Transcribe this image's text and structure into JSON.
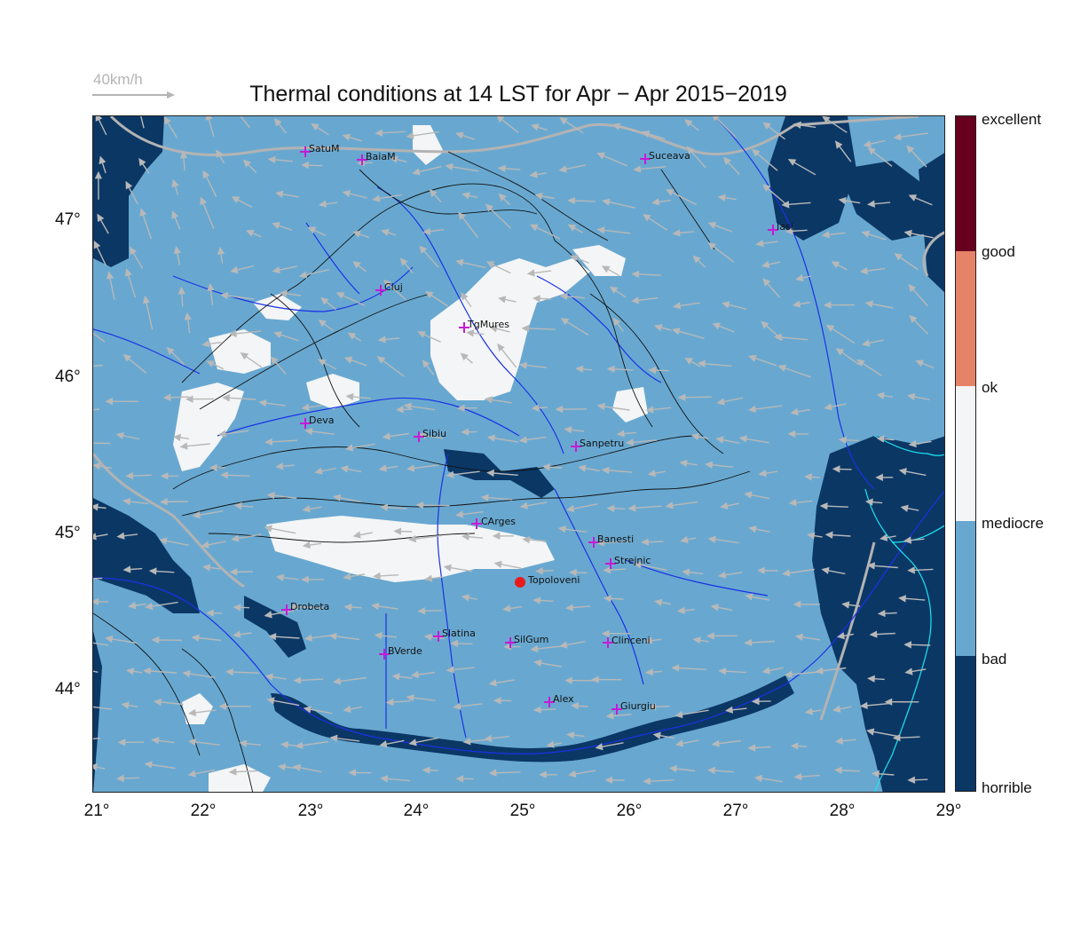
{
  "title": "Thermal conditions at 14 LST for Apr − Apr  2015−2019",
  "scale": {
    "label": "40km/h",
    "color": "#b4b4b4"
  },
  "axes": {
    "lat_labels": [
      "47°",
      "46°",
      "45°",
      "44°"
    ],
    "lon_labels": [
      "21°",
      "22°",
      "23°",
      "24°",
      "25°",
      "26°",
      "27°",
      "28°",
      "29°"
    ]
  },
  "legend": [
    {
      "label": "excellent",
      "color": "#67001f"
    },
    {
      "label": "good",
      "color": "#e58368"
    },
    {
      "label": "ok",
      "color": "#f4f5f6"
    },
    {
      "label": "mediocre",
      "color": "#68a8d0"
    },
    {
      "label": "bad",
      "color": "#0b3765"
    },
    {
      "label": "horrible",
      "color": ""
    }
  ],
  "cities": [
    {
      "name": "SatuM"
    },
    {
      "name": "BaiaM"
    },
    {
      "name": "Suceava"
    },
    {
      "name": "Iasi"
    },
    {
      "name": "Cluj"
    },
    {
      "name": "TgMures"
    },
    {
      "name": "Deva"
    },
    {
      "name": "Sibiu"
    },
    {
      "name": "Sanpetru"
    },
    {
      "name": "CArges"
    },
    {
      "name": "Banesti"
    },
    {
      "name": "Strejnic"
    },
    {
      "name": "Drobeta"
    },
    {
      "name": "Slatina"
    },
    {
      "name": "SilGum"
    },
    {
      "name": "Clinceni"
    },
    {
      "name": "BVerde"
    },
    {
      "name": "Alex"
    },
    {
      "name": "Giurgiu"
    }
  ],
  "home": {
    "name": "Topoloveni"
  },
  "colors": {
    "mediocre_fill": "#68a8d0",
    "bad_fill": "#0b3765",
    "ok_fill": "#f4f5f6",
    "rivers": "#1a32e6",
    "coast": "#1ae6f0",
    "border": "#b3b3b3",
    "wind": "#b8b8b8",
    "city_marker": "#c51bd6",
    "home_marker": "#e81b1b"
  }
}
